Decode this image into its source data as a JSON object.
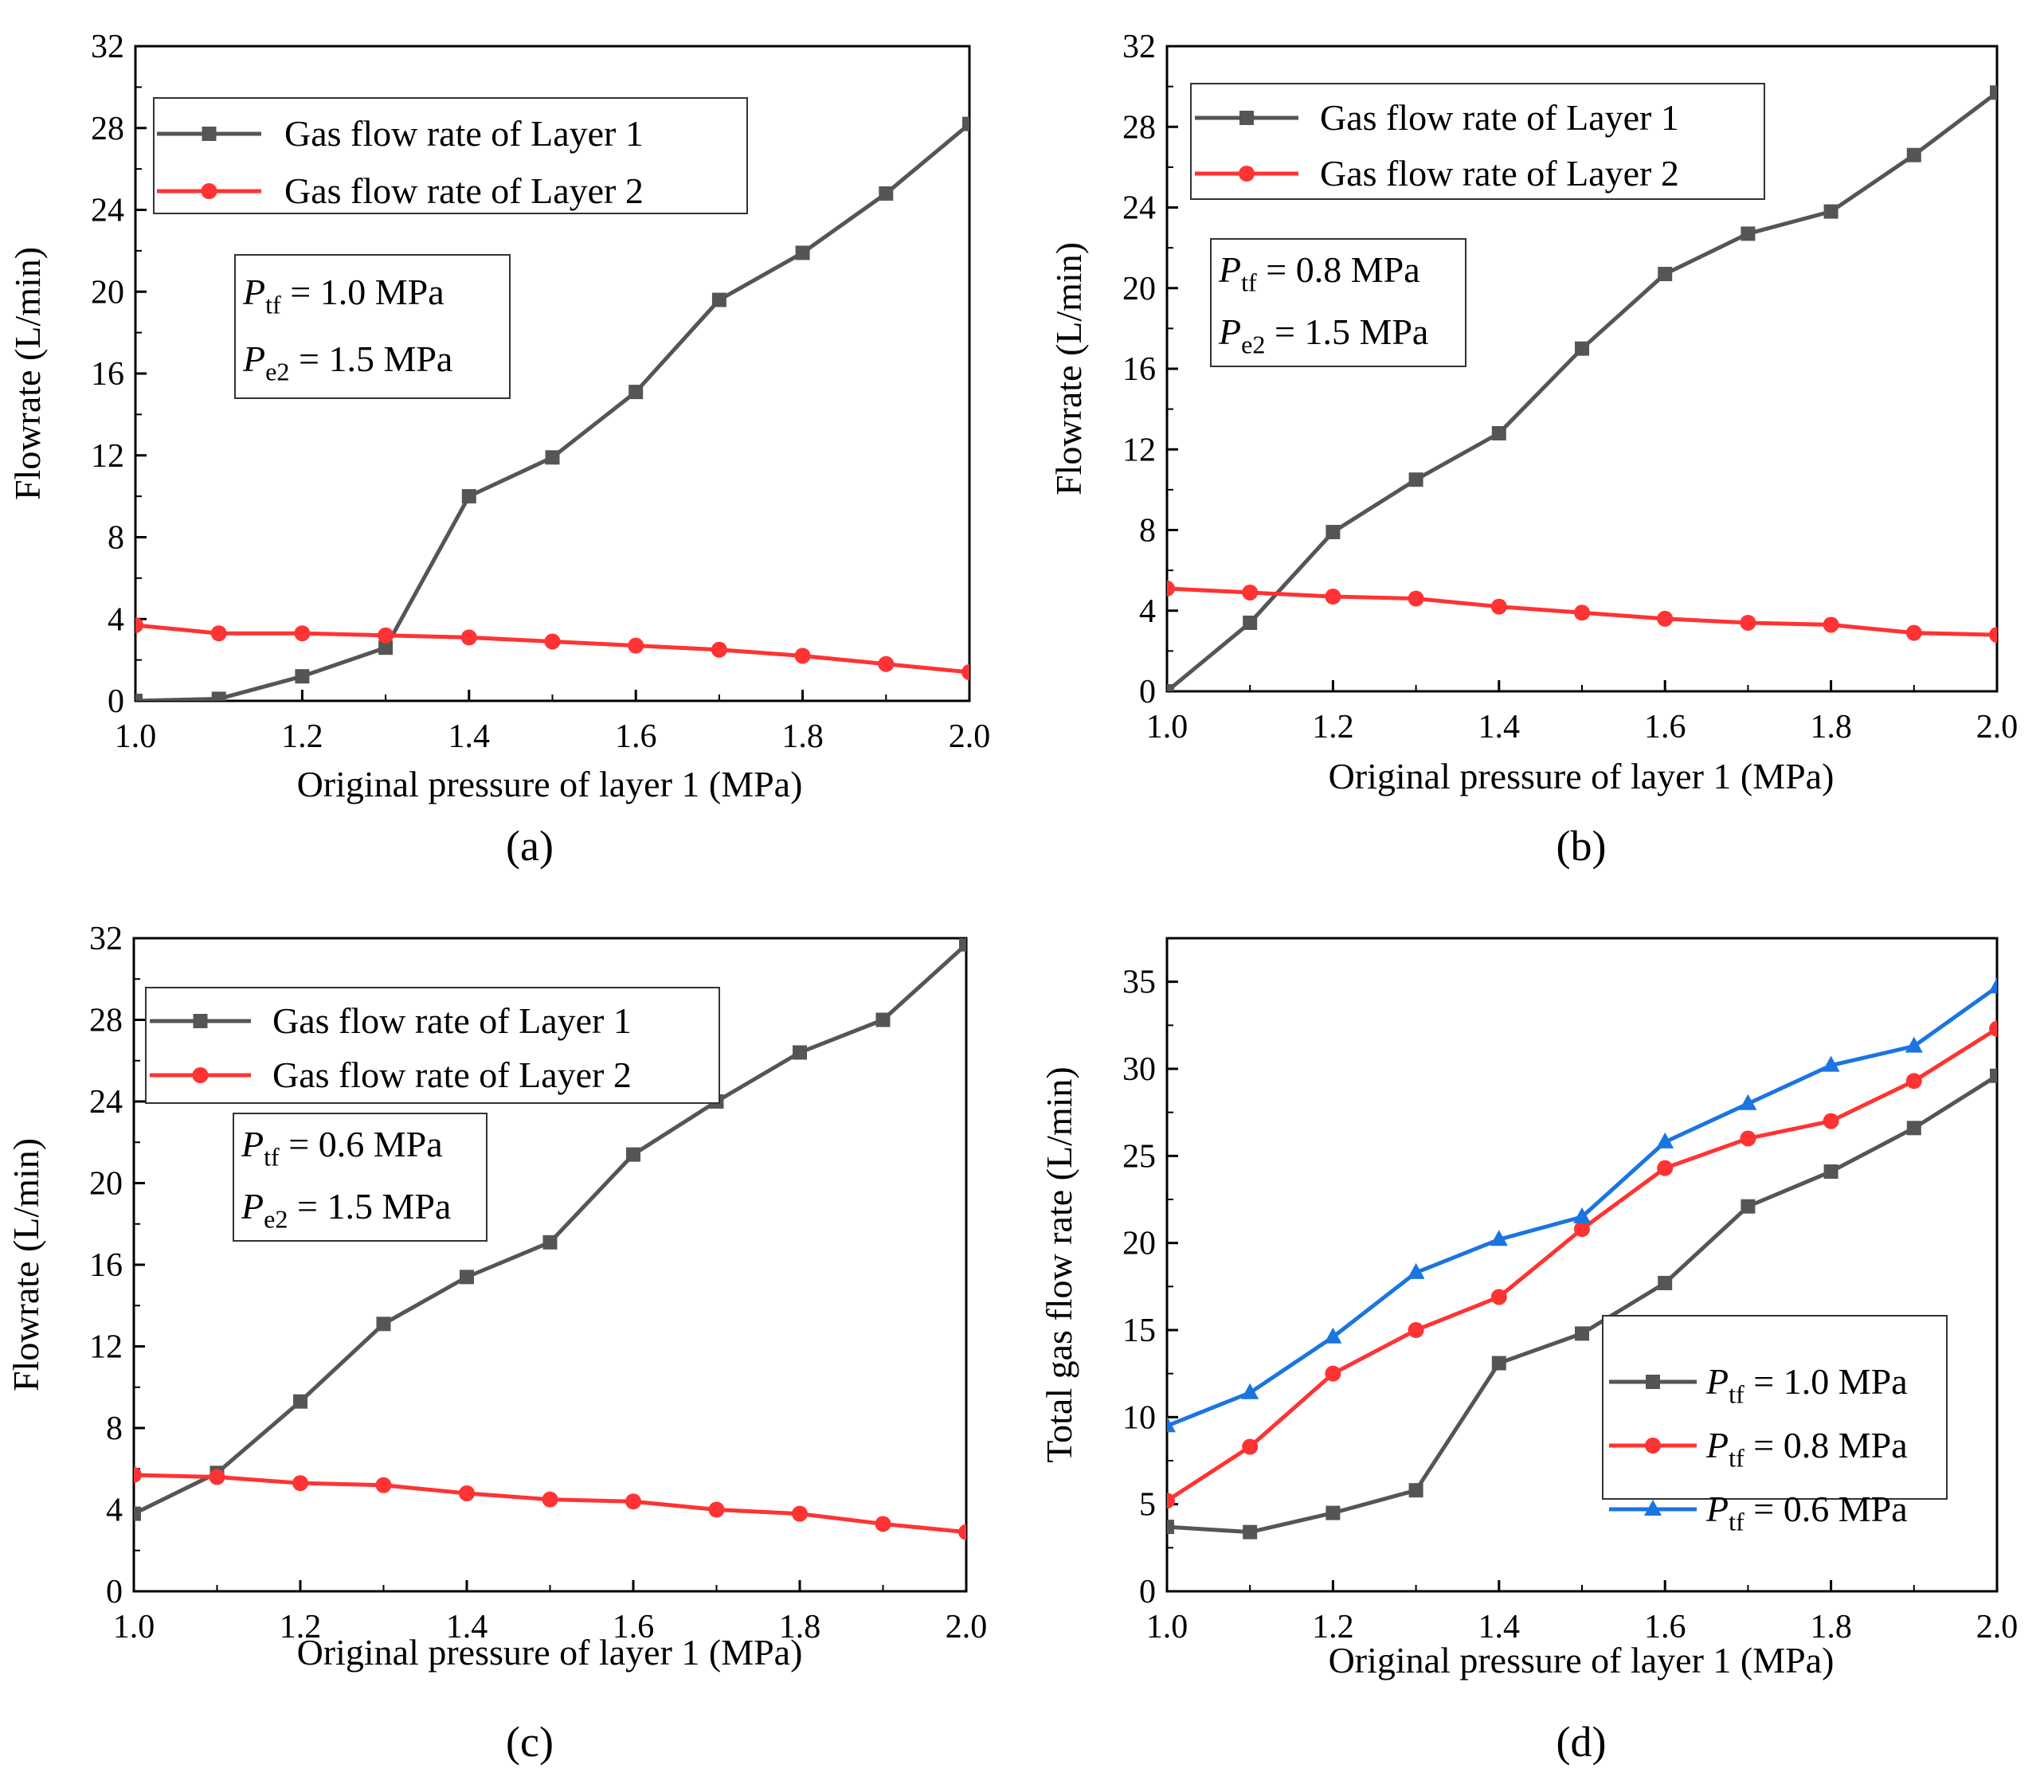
{
  "chart_data": [
    {
      "type": "line",
      "panel_label": "(a)",
      "xlabel": "Original pressure of layer 1 (MPa)",
      "ylabel": "Flowrate (L/min)",
      "xlim": [
        1.0,
        2.0
      ],
      "ylim": [
        0,
        32
      ],
      "xticks": [
        "1.0",
        "1.2",
        "1.4",
        "1.6",
        "1.8",
        "2.0"
      ],
      "yticks": [
        "0",
        "4",
        "8",
        "12",
        "16",
        "20",
        "24",
        "28",
        "32"
      ],
      "legend_position": "top-left",
      "annotation": [
        {
          "symbol": "P",
          "sub": "tf",
          "rest": " = 1.0 MPa"
        },
        {
          "symbol": "P",
          "sub": "e2",
          "rest": " = 1.5 MPa"
        }
      ],
      "x": [
        1.0,
        1.1,
        1.2,
        1.3,
        1.4,
        1.5,
        1.6,
        1.7,
        1.8,
        1.9,
        2.0
      ],
      "series": [
        {
          "name": "Gas flow rate of Layer 1",
          "color": "#555555",
          "marker": "square",
          "values": [
            0,
            0.1,
            1.2,
            2.6,
            10.0,
            11.9,
            15.1,
            19.6,
            21.9,
            24.8,
            28.2
          ]
        },
        {
          "name": "Gas flow rate of Layer 2",
          "color": "#ff3333",
          "marker": "circle",
          "values": [
            3.7,
            3.3,
            3.3,
            3.2,
            3.1,
            2.9,
            2.7,
            2.5,
            2.2,
            1.8,
            1.4
          ]
        }
      ]
    },
    {
      "type": "line",
      "panel_label": "(b)",
      "xlabel": "Original pressure of layer 1 (MPa)",
      "ylabel": "Flowrate (L/min)",
      "xlim": [
        1.0,
        2.0
      ],
      "ylim": [
        0,
        32
      ],
      "xticks": [
        "1.0",
        "1.2",
        "1.4",
        "1.6",
        "1.8",
        "2.0"
      ],
      "yticks": [
        "0",
        "4",
        "8",
        "12",
        "16",
        "20",
        "24",
        "28",
        "32"
      ],
      "legend_position": "top-left",
      "annotation": [
        {
          "symbol": "P",
          "sub": "tf",
          "rest": " = 0.8 MPa"
        },
        {
          "symbol": "P",
          "sub": "e2",
          "rest": " = 1.5 MPa"
        }
      ],
      "x": [
        1.0,
        1.1,
        1.2,
        1.3,
        1.4,
        1.5,
        1.6,
        1.7,
        1.8,
        1.9,
        2.0
      ],
      "series": [
        {
          "name": "Gas flow rate of Layer 1",
          "color": "#555555",
          "marker": "square",
          "values": [
            0,
            3.4,
            7.9,
            10.5,
            12.8,
            17.0,
            20.7,
            22.7,
            23.8,
            26.6,
            29.7
          ]
        },
        {
          "name": "Gas flow rate of Layer 2",
          "color": "#ff3333",
          "marker": "circle",
          "values": [
            5.1,
            4.9,
            4.7,
            4.6,
            4.2,
            3.9,
            3.6,
            3.4,
            3.3,
            2.9,
            2.8
          ]
        }
      ]
    },
    {
      "type": "line",
      "panel_label": "(c)",
      "xlabel": "Original pressure of layer 1 (MPa)",
      "ylabel": "Flowrate (L/min)",
      "xlim": [
        1.0,
        2.0
      ],
      "ylim": [
        0,
        32
      ],
      "xticks": [
        "1.0",
        "1.2",
        "1.4",
        "1.6",
        "1.8",
        "2.0"
      ],
      "yticks": [
        "0",
        "4",
        "8",
        "12",
        "16",
        "20",
        "24",
        "28",
        "32"
      ],
      "legend_position": "top-left",
      "annotation": [
        {
          "symbol": "P",
          "sub": "tf",
          "rest": " = 0.6 MPa"
        },
        {
          "symbol": "P",
          "sub": "e2",
          "rest": " = 1.5 MPa"
        }
      ],
      "x": [
        1.0,
        1.1,
        1.2,
        1.3,
        1.4,
        1.5,
        1.6,
        1.7,
        1.8,
        1.9,
        2.0
      ],
      "series": [
        {
          "name": "Gas flow rate of Layer 1",
          "color": "#555555",
          "marker": "square",
          "values": [
            3.8,
            5.8,
            9.3,
            13.1,
            15.4,
            17.1,
            21.4,
            24.0,
            26.4,
            28.0,
            31.7
          ]
        },
        {
          "name": "Gas flow rate of Layer 2",
          "color": "#ff3333",
          "marker": "circle",
          "values": [
            5.7,
            5.6,
            5.3,
            5.2,
            4.8,
            4.5,
            4.4,
            4.0,
            3.8,
            3.3,
            2.9
          ]
        }
      ]
    },
    {
      "type": "line",
      "panel_label": "(d)",
      "xlabel": "Original pressure of layer 1 (MPa)",
      "ylabel": "Total gas flow rate (L/min)",
      "xlim": [
        1.0,
        2.0
      ],
      "ylim": [
        0,
        37.5
      ],
      "xticks": [
        "1.0",
        "1.2",
        "1.4",
        "1.6",
        "1.8",
        "2.0"
      ],
      "yticks": [
        "0",
        "5",
        "10",
        "15",
        "20",
        "25",
        "30",
        "35"
      ],
      "legend_position": "bottom-right",
      "x": [
        1.0,
        1.1,
        1.2,
        1.3,
        1.4,
        1.5,
        1.6,
        1.7,
        1.8,
        1.9,
        2.0
      ],
      "series": [
        {
          "name_symbol": "P",
          "name_sub": "tf",
          "name_rest": " = 1.0 MPa",
          "color": "#555555",
          "marker": "square",
          "values": [
            3.7,
            3.4,
            4.5,
            5.8,
            13.1,
            14.8,
            17.7,
            22.1,
            24.1,
            26.6,
            29.6
          ]
        },
        {
          "name_symbol": "P",
          "name_sub": "tf",
          "name_rest": " = 0.8 MPa",
          "color": "#ff3333",
          "marker": "circle",
          "values": [
            5.2,
            8.3,
            12.5,
            15.0,
            16.9,
            20.8,
            24.3,
            26.0,
            27.0,
            29.3,
            32.3
          ]
        },
        {
          "name_symbol": "P",
          "name_sub": "tf",
          "name_rest": " = 0.6 MPa",
          "color": "#1a75e0",
          "marker": "triangle",
          "values": [
            9.5,
            11.4,
            14.6,
            18.3,
            20.2,
            21.5,
            25.8,
            28.0,
            30.2,
            31.3,
            34.7
          ]
        }
      ]
    }
  ]
}
